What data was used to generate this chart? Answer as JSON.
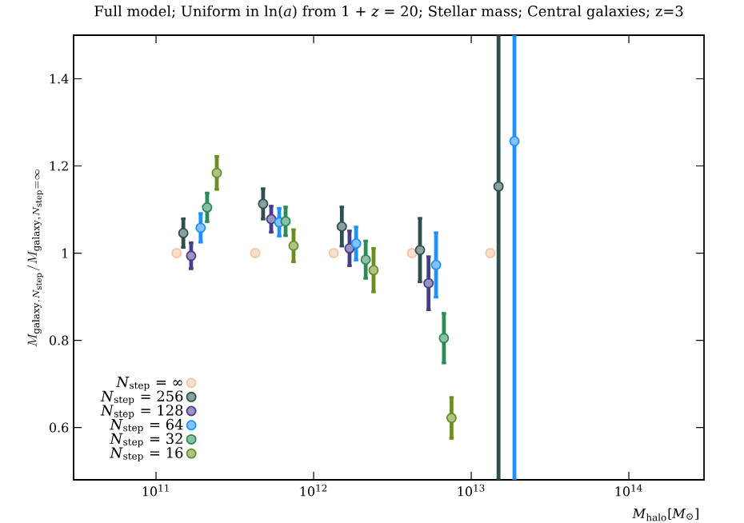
{
  "chart_data": {
    "type": "scatter",
    "title": "Full model; Uniform in ln(*a*) from 1 + *z* = 20; Stellar mass; Central galaxies; z=3",
    "xlabel": "*M*$_{halo}$[*M*$_{⊙}$]",
    "ylabel": "M_{\\mathrm{galaxy},N_{\\mathrm{step}}}/M_{\\mathrm{galaxy},N_{\\mathrm{step}}=\\infty}",
    "log": "x",
    "xlim": [
      30000000000.0,
      300000000000000.0
    ],
    "ylim": [
      0.48,
      1.5
    ],
    "xticks": [
      {
        "value": 100000000000.0,
        "label": "10$^{11}$"
      },
      {
        "value": 1000000000000.0,
        "label": "10$^{12}$"
      },
      {
        "value": 10000000000000.0,
        "label": "10$^{13}$"
      },
      {
        "value": 100000000000000.0,
        "label": "10$^{14}$"
      }
    ],
    "yticks": [
      0.6,
      0.8,
      1,
      1.2,
      1.4
    ],
    "marker": "circle",
    "legend": "bottom left",
    "grid": false,
    "series": [
      {
        "name": "*N*$_{step}$ = ∞",
        "color": "#f2c6a5",
        "x": [
          135000000000.0,
          426000000000.0,
          1340000000000.0,
          4210000000000.0,
          13200000000000.0
        ],
        "values": [
          1,
          1,
          1,
          1,
          1
        ]
      },
      {
        "name": "*N*$_{step}$ = 256",
        "color": "#2f4f4f",
        "x": [
          149000000000.0,
          478000000000.0,
          1510000000000.0,
          4730000000000.0,
          14900000000000.0
        ],
        "values": [
          1.046,
          1.113,
          1.061,
          1.007,
          1.153
        ],
        "errors": [
          0.033,
          0.035,
          0.045,
          0.073,
          [
            0.48,
            1.5
          ]
        ]
      },
      {
        "name": "*N*$_{step}$ = 128",
        "color": "#483d8b",
        "x": [
          167000000000.0,
          538000000000.0,
          1690000000000.0,
          5360000000000.0
        ],
        "values": [
          0.994,
          1.078,
          1.011,
          0.931
        ],
        "errors": [
          0.03,
          0.03,
          0.04,
          0.061
        ]
      },
      {
        "name": "*N*$_{step}$ = 64",
        "color": "#1e90ff",
        "x": [
          192000000000.0,
          605000000000.0,
          1860000000000.0,
          5980000000000.0,
          18800000000000.0
        ],
        "values": [
          1.058,
          1.071,
          1.022,
          0.973,
          1.257
        ],
        "errors": [
          0.033,
          0.032,
          0.038,
          0.074,
          [
            0.48,
            1.5
          ]
        ]
      },
      {
        "name": "*N*$_{step}$ = 32",
        "color": "#2e8b57",
        "x": [
          211000000000.0,
          664000000000.0,
          2140000000000.0,
          6710000000000.0
        ],
        "values": [
          1.105,
          1.073,
          0.985,
          0.805
        ],
        "errors": [
          0.033,
          0.033,
          0.043,
          0.057
        ]
      },
      {
        "name": "*N*$_{step}$ = 16",
        "color": "#6b8e23",
        "x": [
          243000000000.0,
          746000000000.0,
          2400000000000.0,
          7500000000000.0
        ],
        "values": [
          1.184,
          1.017,
          0.961,
          0.622
        ],
        "errors": [
          0.038,
          0.037,
          0.05,
          0.047
        ]
      }
    ]
  }
}
